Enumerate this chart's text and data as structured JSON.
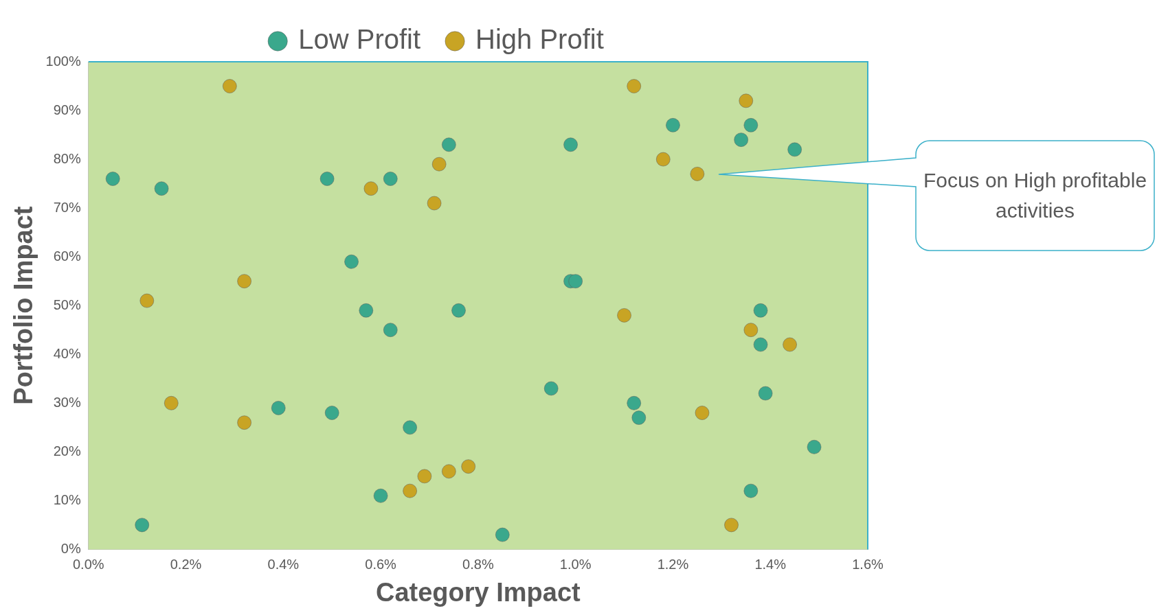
{
  "chart_data": {
    "type": "scatter",
    "xlabel": "Category Impact",
    "ylabel": "Portfolio Impact",
    "legend": "top",
    "grid": false,
    "marker": "circle",
    "xlim": [
      0,
      1.6
    ],
    "ylim": [
      0,
      100
    ],
    "xticks": [
      {
        "value": 0,
        "label": "0.0%"
      },
      {
        "value": 0.2,
        "label": "0.2%"
      },
      {
        "value": 0.4,
        "label": "0.4%"
      },
      {
        "value": 0.6,
        "label": "0.6%"
      },
      {
        "value": 0.8,
        "label": "0.8%"
      },
      {
        "value": 1,
        "label": "1.0%"
      },
      {
        "value": 1.2,
        "label": "1.2%"
      },
      {
        "value": 1.4,
        "label": "1.4%"
      },
      {
        "value": 1.6,
        "label": "1.6%"
      }
    ],
    "yticks": [
      {
        "value": 0,
        "label": "0%"
      },
      {
        "value": 10,
        "label": "10%"
      },
      {
        "value": 20,
        "label": "20%"
      },
      {
        "value": 30,
        "label": "30%"
      },
      {
        "value": 40,
        "label": "40%"
      },
      {
        "value": 50,
        "label": "50%"
      },
      {
        "value": 60,
        "label": "60%"
      },
      {
        "value": 70,
        "label": "70%"
      },
      {
        "value": 80,
        "label": "80%"
      },
      {
        "value": 90,
        "label": "90%"
      },
      {
        "value": 100,
        "label": "100%"
      }
    ],
    "series": [
      {
        "name": "Low Profit",
        "color": "#3aa88c",
        "x": [
          0.05,
          0.15,
          0.11,
          0.39,
          0.49,
          0.5,
          0.54,
          0.57,
          0.62,
          0.62,
          0.6,
          0.66,
          0.74,
          0.76,
          0.85,
          0.95,
          0.99,
          0.99,
          1.0,
          1.12,
          1.13,
          1.2,
          1.34,
          1.36,
          1.45,
          1.38,
          1.38,
          1.39,
          1.49,
          1.36
        ],
        "values": [
          76,
          74,
          5,
          29,
          76,
          28,
          59,
          49,
          76,
          45,
          11,
          25,
          83,
          49,
          3,
          33,
          83,
          55,
          55,
          30,
          27,
          87,
          84,
          87,
          82,
          49,
          42,
          32,
          21,
          12
        ]
      },
      {
        "name": "High Profit",
        "color": "#c8a424",
        "x": [
          0.29,
          0.32,
          0.12,
          0.17,
          0.32,
          0.58,
          0.72,
          0.71,
          0.69,
          0.74,
          0.78,
          0.66,
          1.12,
          1.35,
          1.18,
          1.25,
          1.1,
          1.36,
          1.44,
          1.26,
          1.32
        ],
        "values": [
          95,
          55,
          51,
          30,
          26,
          74,
          79,
          71,
          15,
          16,
          17,
          12,
          95,
          92,
          80,
          77,
          48,
          45,
          42,
          28,
          5
        ]
      }
    ],
    "annotations": [
      "Focus on High profitable activities"
    ]
  }
}
